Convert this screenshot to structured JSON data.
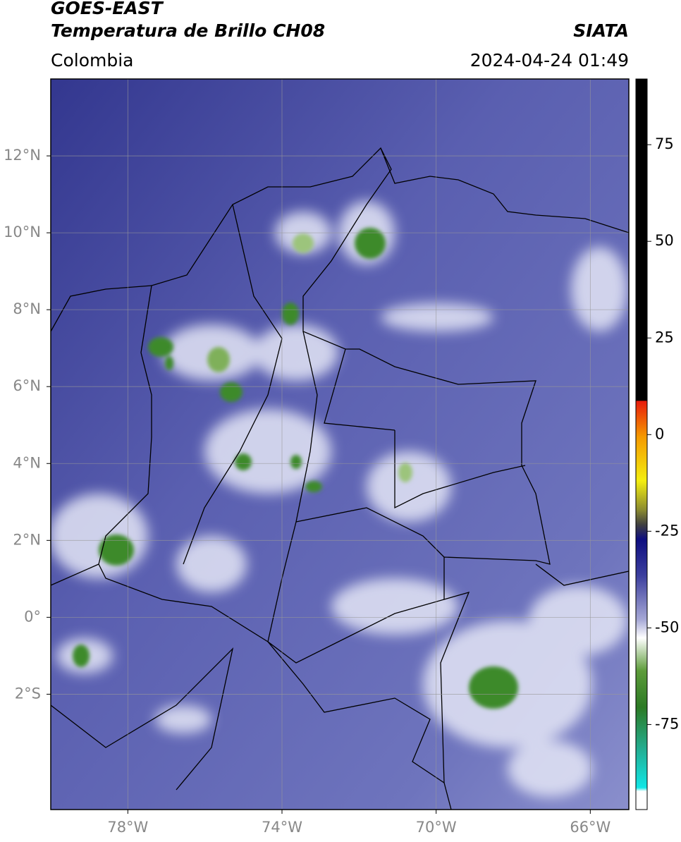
{
  "header": {
    "source": "GOES-EAST",
    "product": "Temperatura de Brillo CH08",
    "agency": "SIATA",
    "region": "Colombia",
    "timestamp": "2024-04-24 01:49"
  },
  "map": {
    "xlim": [
      -80,
      -65
    ],
    "ylim": [
      -5,
      14
    ],
    "grid": true,
    "xticks": [
      {
        "value": -78,
        "label": "78°W"
      },
      {
        "value": -74,
        "label": "74°W"
      },
      {
        "value": -70,
        "label": "70°W"
      },
      {
        "value": -66,
        "label": "66°W"
      }
    ],
    "yticks": [
      {
        "value": 12,
        "label": "12°N"
      },
      {
        "value": 10,
        "label": "10°N"
      },
      {
        "value": 8,
        "label": "8°N"
      },
      {
        "value": 6,
        "label": "6°N"
      },
      {
        "value": 4,
        "label": "4°N"
      },
      {
        "value": 2,
        "label": "2°N"
      },
      {
        "value": 0,
        "label": "0°"
      },
      {
        "value": -2,
        "label": "2°S"
      }
    ]
  },
  "colorbar": {
    "lim": [
      -97,
      92
    ],
    "ticks": [
      75,
      50,
      25,
      0,
      -25,
      -50,
      -75
    ]
  }
}
